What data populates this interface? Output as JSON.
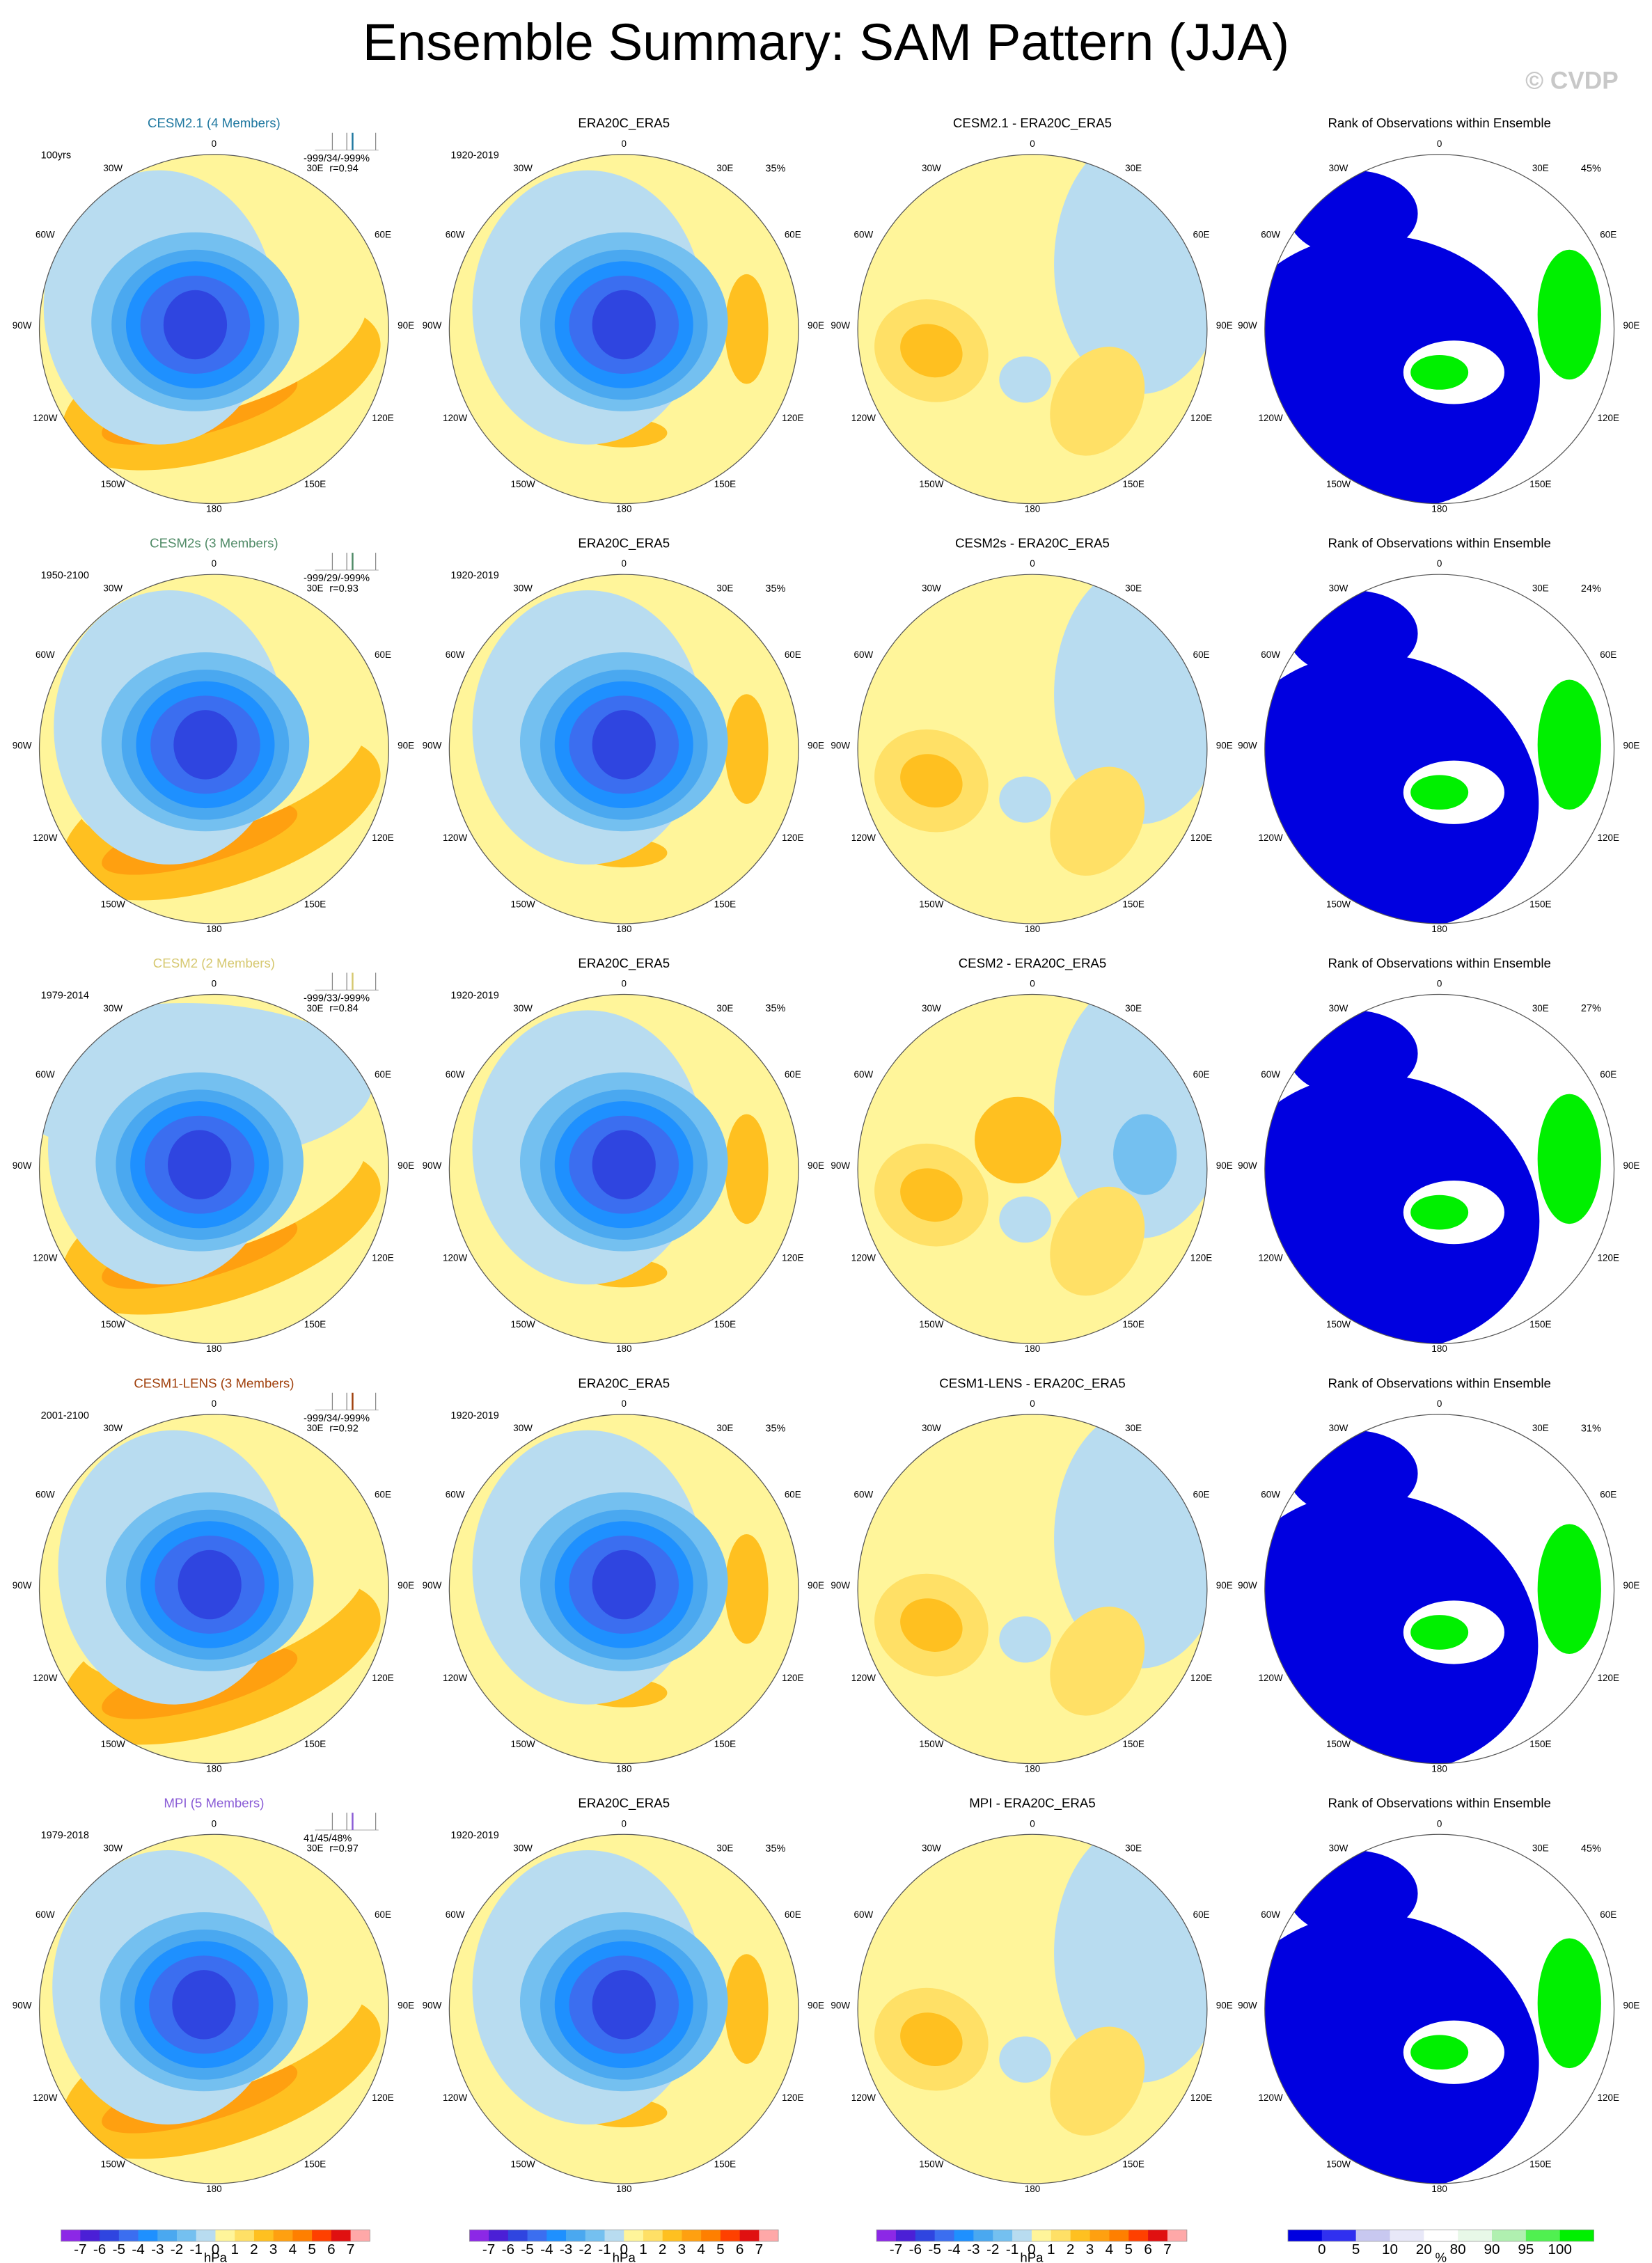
{
  "title": "Ensemble Summary: SAM Pattern (JJA)",
  "watermark": "© CVDP",
  "lon_labels": [
    "0",
    "30W",
    "30E",
    "60W",
    "60E",
    "90W",
    "90E",
    "120W",
    "120E",
    "150W",
    "150E",
    "180"
  ],
  "rows": [
    {
      "model": {
        "title": "CESM2.1 (4 Members)",
        "color": "#1f78a0",
        "period": "100yrs",
        "stats": "-999/34/-999%",
        "corr": "r=0.94"
      },
      "obs": {
        "title": "ERA20C_ERA5",
        "period": "1920-2019",
        "pct": "35%"
      },
      "diff": {
        "title": "CESM2.1 - ERA20C_ERA5"
      },
      "rank": {
        "title": "Rank of Observations within Ensemble",
        "pct": "45%"
      }
    },
    {
      "model": {
        "title": "CESM2s (3 Members)",
        "color": "#4f8a66",
        "period": "1950-2100",
        "stats": "-999/29/-999%",
        "corr": "r=0.93"
      },
      "obs": {
        "title": "ERA20C_ERA5",
        "period": "1920-2019",
        "pct": "35%"
      },
      "diff": {
        "title": "CESM2s - ERA20C_ERA5"
      },
      "rank": {
        "title": "Rank of Observations within Ensemble",
        "pct": "24%"
      }
    },
    {
      "model": {
        "title": "CESM2 (2 Members)",
        "color": "#d6c870",
        "period": "1979-2014",
        "stats": "-999/33/-999%",
        "corr": "r=0.84"
      },
      "obs": {
        "title": "ERA20C_ERA5",
        "period": "1920-2019",
        "pct": "35%"
      },
      "diff": {
        "title": "CESM2 - ERA20C_ERA5"
      },
      "rank": {
        "title": "Rank of Observations within Ensemble",
        "pct": "27%"
      }
    },
    {
      "model": {
        "title": "CESM1-LENS (3 Members)",
        "color": "#a0400c",
        "period": "2001-2100",
        "stats": "-999/34/-999%",
        "corr": "r=0.92"
      },
      "obs": {
        "title": "ERA20C_ERA5",
        "period": "1920-2019",
        "pct": "35%"
      },
      "diff": {
        "title": "CESM1-LENS - ERA20C_ERA5"
      },
      "rank": {
        "title": "Rank of Observations within Ensemble",
        "pct": "31%"
      }
    },
    {
      "model": {
        "title": "MPI (5 Members)",
        "color": "#8a5cd6",
        "period": "1979-2018",
        "stats": "41/45/48%",
        "corr": "r=0.97"
      },
      "obs": {
        "title": "ERA20C_ERA5",
        "period": "1920-2019",
        "pct": "35%"
      },
      "diff": {
        "title": "MPI - ERA20C_ERA5"
      },
      "rank": {
        "title": "Rank of Observations within Ensemble",
        "pct": "45%"
      }
    }
  ],
  "colorbars": {
    "hpa": {
      "labels": [
        -7,
        -6,
        -5,
        -4,
        -3,
        -2,
        -1,
        0,
        1,
        2,
        3,
        4,
        5,
        6,
        7
      ],
      "unit": "hPa",
      "colors": [
        "#8c28e6",
        "#4b1fd6",
        "#2f45e0",
        "#3b6ef0",
        "#1e90ff",
        "#4aa8f0",
        "#74c0f0",
        "#b8dcf0",
        "#fff59a",
        "#ffe066",
        "#ffc020",
        "#ffa010",
        "#ff7f00",
        "#ff4000",
        "#e01010",
        "#ffa8a8"
      ]
    },
    "pct": {
      "labels": [
        0,
        5,
        10,
        20,
        80,
        90,
        95,
        100
      ],
      "unit": "%",
      "colors": [
        "#0000e0",
        "#3030f0",
        "#c8c8f0",
        "#e8e8f8",
        "#ffffff",
        "#e8f8e8",
        "#b0f0b0",
        "#50f050",
        "#00f000"
      ]
    }
  }
}
